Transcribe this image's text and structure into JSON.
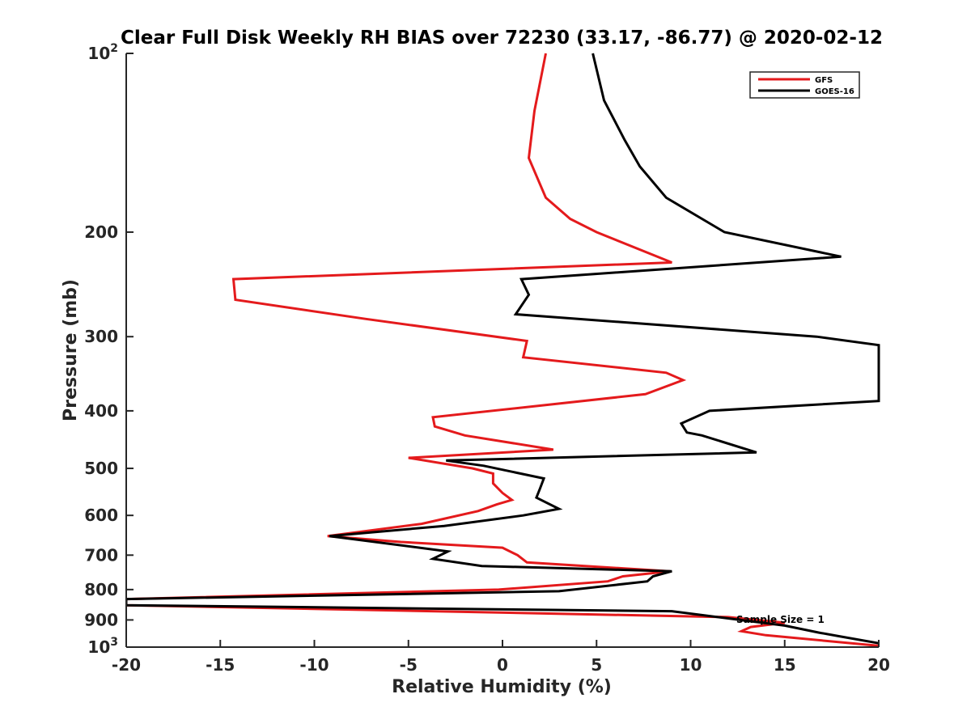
{
  "chart_data": {
    "type": "line",
    "title": "Clear Full Disk Weekly RH BIAS over 72230 (33.17, -86.77) @ 2020-02-12",
    "xlabel": "Relative Humidity (%)",
    "ylabel": "Pressure (mb)",
    "xlim": [
      -20,
      20
    ],
    "ylim": [
      100,
      1000
    ],
    "yscale": "log",
    "y_reversed": true,
    "grid": false,
    "legend_position": "top-right",
    "annotation": "Sample Size = 1",
    "x_ticks": [
      {
        "value": -20,
        "label": "-20"
      },
      {
        "value": -15,
        "label": "-15"
      },
      {
        "value": -10,
        "label": "-10"
      },
      {
        "value": -5,
        "label": "-5"
      },
      {
        "value": 0,
        "label": "0"
      },
      {
        "value": 5,
        "label": "5"
      },
      {
        "value": 10,
        "label": "10"
      },
      {
        "value": 15,
        "label": "15"
      },
      {
        "value": 20,
        "label": "20"
      }
    ],
    "y_ticks": [
      {
        "value": 100,
        "base": "10",
        "exp": "2"
      },
      {
        "value": 200,
        "base": "200",
        "exp": ""
      },
      {
        "value": 300,
        "base": "300",
        "exp": ""
      },
      {
        "value": 400,
        "base": "400",
        "exp": ""
      },
      {
        "value": 500,
        "base": "500",
        "exp": ""
      },
      {
        "value": 600,
        "base": "600",
        "exp": ""
      },
      {
        "value": 700,
        "base": "700",
        "exp": ""
      },
      {
        "value": 800,
        "base": "800",
        "exp": ""
      },
      {
        "value": 900,
        "base": "900",
        "exp": ""
      },
      {
        "value": 1000,
        "base": "10",
        "exp": "3"
      }
    ],
    "series": [
      {
        "name": "GFS",
        "color": "#e41a1c",
        "points": [
          [
            2.3,
            100
          ],
          [
            1.7,
            125
          ],
          [
            1.4,
            150
          ],
          [
            2.3,
            175
          ],
          [
            3.6,
            190
          ],
          [
            5.0,
            200
          ],
          [
            9.0,
            225
          ],
          [
            -14.3,
            240
          ],
          [
            -14.2,
            260
          ],
          [
            -7.3,
            280
          ],
          [
            1.3,
            305
          ],
          [
            1.1,
            325
          ],
          [
            8.7,
            345
          ],
          [
            9.6,
            355
          ],
          [
            7.6,
            375
          ],
          [
            -3.7,
            410
          ],
          [
            -3.6,
            425
          ],
          [
            -2.0,
            440
          ],
          [
            2.7,
            465
          ],
          [
            -5.0,
            480
          ],
          [
            -1.6,
            500
          ],
          [
            -0.5,
            510
          ],
          [
            -0.5,
            530
          ],
          [
            0,
            550
          ],
          [
            0.5,
            565
          ],
          [
            -0.3,
            575
          ],
          [
            -1.3,
            590
          ],
          [
            -4.3,
            620
          ],
          [
            -9.3,
            650
          ],
          [
            -5.4,
            665
          ],
          [
            0,
            680
          ],
          [
            0.8,
            700
          ],
          [
            1.3,
            720
          ],
          [
            8.9,
            745
          ],
          [
            6.4,
            760
          ],
          [
            5.6,
            775
          ],
          [
            -0.2,
            800
          ],
          [
            -20,
            830
          ],
          [
            -20,
            850
          ],
          [
            12.0,
            890
          ],
          [
            15.0,
            910
          ],
          [
            13.2,
            925
          ],
          [
            12.7,
            940
          ],
          [
            14.0,
            955
          ],
          [
            20,
            995
          ]
        ]
      },
      {
        "name": "GOES-16",
        "color": "#000000",
        "points": [
          [
            4.8,
            100
          ],
          [
            5.4,
            120
          ],
          [
            6.5,
            140
          ],
          [
            7.3,
            155
          ],
          [
            8.7,
            175
          ],
          [
            11.8,
            200
          ],
          [
            18.0,
            220
          ],
          [
            1.0,
            240
          ],
          [
            1.4,
            255
          ],
          [
            0.7,
            275
          ],
          [
            16.7,
            300
          ],
          [
            20,
            310
          ],
          [
            20,
            385
          ],
          [
            11.0,
            400
          ],
          [
            9.5,
            420
          ],
          [
            9.8,
            435
          ],
          [
            10.6,
            440
          ],
          [
            13.5,
            470
          ],
          [
            -3.0,
            485
          ],
          [
            -1.0,
            495
          ],
          [
            2.2,
            520
          ],
          [
            2.0,
            540
          ],
          [
            1.8,
            560
          ],
          [
            3.0,
            585
          ],
          [
            1.1,
            600
          ],
          [
            -3.1,
            625
          ],
          [
            -9.2,
            650
          ],
          [
            -2.9,
            690
          ],
          [
            -3.7,
            710
          ],
          [
            -1.1,
            730
          ],
          [
            9.0,
            745
          ],
          [
            8.0,
            760
          ],
          [
            7.7,
            775
          ],
          [
            3.0,
            805
          ],
          [
            -20,
            830
          ],
          [
            -20,
            850
          ],
          [
            9.0,
            870
          ],
          [
            15.0,
            920
          ],
          [
            16.8,
            945
          ],
          [
            18.0,
            960
          ],
          [
            20,
            985
          ]
        ]
      }
    ]
  }
}
